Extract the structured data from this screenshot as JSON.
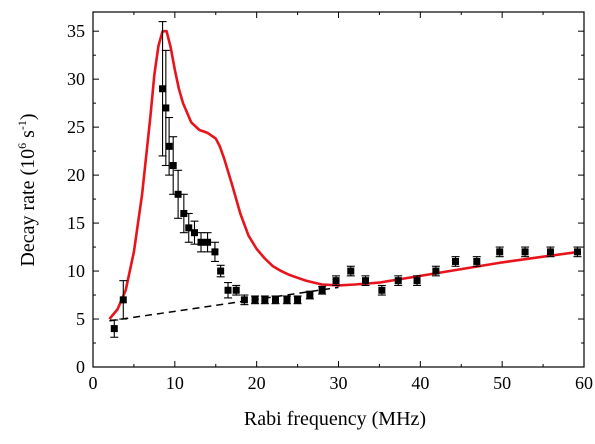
{
  "chart_data": {
    "type": "scatter",
    "title": "",
    "xlabel": "Rabi frequency (MHz)",
    "ylabel_parts": {
      "prefix": "Decay rate (10",
      "sup1": "6",
      "middle": " s",
      "sup2": "-1",
      "suffix": ")"
    },
    "xlim": [
      0,
      60
    ],
    "ylim": [
      0,
      37
    ],
    "x_ticks": [
      0,
      10,
      20,
      30,
      40,
      50,
      60
    ],
    "y_ticks": [
      0,
      5,
      10,
      15,
      20,
      25,
      30,
      35
    ],
    "x_tick_labels": [
      "0",
      "10",
      "20",
      "30",
      "40",
      "50",
      "60"
    ],
    "y_tick_labels": [
      "0",
      "5",
      "10",
      "15",
      "20",
      "25",
      "30",
      "35"
    ],
    "grid": false,
    "legend": "none",
    "colors": {
      "data": "#000000",
      "theory_curve": "#e8141b",
      "baseline": "#000000"
    },
    "series": [
      {
        "kind": "points_with_error_bars",
        "marker": "square",
        "points": [
          {
            "x": 2.6,
            "y": 4.0,
            "err": 0.9
          },
          {
            "x": 3.7,
            "y": 7.0,
            "err": 2.0
          },
          {
            "x": 8.5,
            "y": 29.0,
            "err": 7.0
          },
          {
            "x": 8.9,
            "y": 27.0,
            "err": 6.0
          },
          {
            "x": 9.3,
            "y": 23.0,
            "err": 3.0
          },
          {
            "x": 9.8,
            "y": 21.0,
            "err": 3.0
          },
          {
            "x": 10.4,
            "y": 18.0,
            "err": 2.5
          },
          {
            "x": 11.1,
            "y": 16.0,
            "err": 2.0
          },
          {
            "x": 11.7,
            "y": 14.5,
            "err": 1.5
          },
          {
            "x": 12.4,
            "y": 14.0,
            "err": 1.2
          },
          {
            "x": 13.2,
            "y": 13.0,
            "err": 1.0
          },
          {
            "x": 14.0,
            "y": 13.0,
            "err": 1.0
          },
          {
            "x": 14.9,
            "y": 12.0,
            "err": 1.0
          },
          {
            "x": 15.6,
            "y": 10.0,
            "err": 0.6
          },
          {
            "x": 16.5,
            "y": 8.0,
            "err": 0.8
          },
          {
            "x": 17.5,
            "y": 8.0,
            "err": 0.5
          },
          {
            "x": 18.5,
            "y": 7.0,
            "err": 0.5
          },
          {
            "x": 19.8,
            "y": 7.0,
            "err": 0.4
          },
          {
            "x": 21.0,
            "y": 7.0,
            "err": 0.4
          },
          {
            "x": 22.3,
            "y": 7.0,
            "err": 0.4
          },
          {
            "x": 23.7,
            "y": 7.0,
            "err": 0.4
          },
          {
            "x": 25.0,
            "y": 7.0,
            "err": 0.4
          },
          {
            "x": 26.5,
            "y": 7.5,
            "err": 0.4
          },
          {
            "x": 28.0,
            "y": 8.0,
            "err": 0.4
          },
          {
            "x": 29.7,
            "y": 9.0,
            "err": 0.5
          },
          {
            "x": 31.5,
            "y": 10.0,
            "err": 0.5
          },
          {
            "x": 33.3,
            "y": 9.0,
            "err": 0.5
          },
          {
            "x": 35.3,
            "y": 8.0,
            "err": 0.5
          },
          {
            "x": 37.3,
            "y": 9.0,
            "err": 0.5
          },
          {
            "x": 39.6,
            "y": 9.0,
            "err": 0.5
          },
          {
            "x": 41.9,
            "y": 10.0,
            "err": 0.5
          },
          {
            "x": 44.3,
            "y": 11.0,
            "err": 0.5
          },
          {
            "x": 46.9,
            "y": 11.0,
            "err": 0.5
          },
          {
            "x": 49.7,
            "y": 12.0,
            "err": 0.5
          },
          {
            "x": 52.8,
            "y": 12.0,
            "err": 0.5
          },
          {
            "x": 55.9,
            "y": 12.0,
            "err": 0.5
          },
          {
            "x": 59.2,
            "y": 12.0,
            "err": 0.5
          }
        ]
      },
      {
        "kind": "line",
        "style": "solid",
        "x": [
          2.0,
          3.0,
          4.0,
          5.0,
          6.0,
          7.0,
          7.5,
          8.0,
          8.5,
          9.0,
          9.5,
          10.0,
          10.5,
          11.0,
          12.0,
          13.0,
          14.0,
          15.0,
          15.5,
          16.0,
          17.0,
          18.0,
          19.0,
          20.0,
          21.0,
          22.0,
          23.0,
          24.0,
          25.0,
          26.0,
          27.0,
          28.0,
          30.0,
          32.0,
          35.0,
          40.0,
          45.0,
          50.0,
          55.0,
          59.3
        ],
        "y": [
          5.0,
          6.0,
          8.0,
          12.0,
          18.0,
          26.0,
          30.5,
          33.5,
          35.0,
          35.0,
          33.3,
          31.0,
          29.0,
          27.5,
          25.5,
          24.7,
          24.4,
          23.8,
          23.0,
          21.8,
          19.0,
          16.0,
          13.7,
          12.3,
          11.3,
          10.5,
          10.0,
          9.6,
          9.3,
          9.0,
          8.8,
          8.6,
          8.5,
          8.6,
          8.8,
          9.5,
          10.2,
          10.9,
          11.5,
          12.0
        ]
      },
      {
        "kind": "line",
        "style": "dashed",
        "x": [
          2.0,
          30.0
        ],
        "y": [
          4.8,
          8.3
        ]
      }
    ]
  }
}
